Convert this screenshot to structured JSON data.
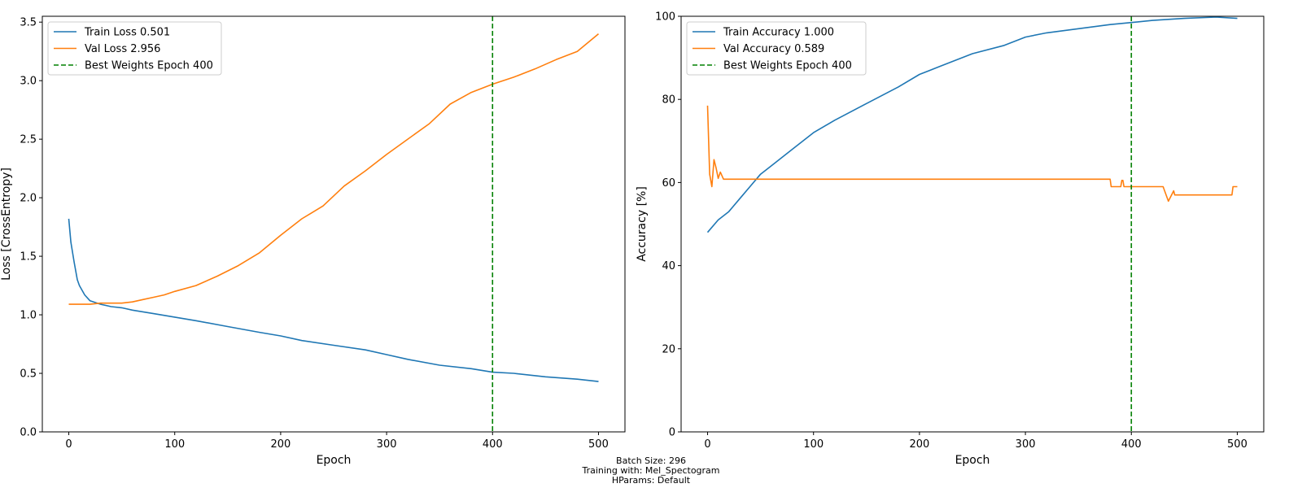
{
  "chart_data": [
    {
      "type": "line",
      "xlabel": "Epoch",
      "ylabel": "Loss [CrossEntropy]",
      "xlim": [
        -25,
        525
      ],
      "ylim": [
        0,
        3.55
      ],
      "xticks": [
        0,
        100,
        200,
        300,
        400,
        500
      ],
      "yticks": [
        0.0,
        0.5,
        1.0,
        1.5,
        2.0,
        2.5,
        3.0,
        3.5
      ],
      "ytick_labels": [
        "0.0",
        "0.5",
        "1.0",
        "1.5",
        "2.0",
        "2.5",
        "3.0",
        "3.5"
      ],
      "legend_position": "top-left",
      "series": [
        {
          "name": "Train Loss 0.501",
          "color": "#1f77b4",
          "x": [
            0,
            2,
            5,
            8,
            10,
            15,
            20,
            30,
            40,
            50,
            60,
            80,
            100,
            120,
            150,
            180,
            200,
            220,
            250,
            280,
            300,
            320,
            350,
            380,
            400,
            420,
            450,
            480,
            500
          ],
          "y": [
            1.82,
            1.62,
            1.45,
            1.3,
            1.25,
            1.17,
            1.12,
            1.09,
            1.07,
            1.06,
            1.04,
            1.01,
            0.98,
            0.95,
            0.9,
            0.85,
            0.82,
            0.78,
            0.74,
            0.7,
            0.66,
            0.62,
            0.57,
            0.54,
            0.51,
            0.5,
            0.47,
            0.45,
            0.43
          ]
        },
        {
          "name": "Val Loss 2.956",
          "color": "#ff7f0e",
          "x": [
            0,
            10,
            20,
            30,
            40,
            50,
            60,
            70,
            80,
            90,
            100,
            120,
            140,
            160,
            180,
            200,
            220,
            240,
            260,
            280,
            300,
            320,
            340,
            360,
            380,
            400,
            420,
            440,
            460,
            480,
            500
          ],
          "y": [
            1.09,
            1.09,
            1.09,
            1.1,
            1.1,
            1.1,
            1.11,
            1.13,
            1.15,
            1.17,
            1.2,
            1.25,
            1.33,
            1.42,
            1.53,
            1.68,
            1.82,
            1.93,
            2.1,
            2.23,
            2.37,
            2.5,
            2.63,
            2.8,
            2.9,
            2.97,
            3.03,
            3.1,
            3.18,
            3.25,
            3.4
          ]
        },
        {
          "name": "Best Weights Epoch 400",
          "color": "#008000",
          "dashed": true,
          "vline": 400
        }
      ]
    },
    {
      "type": "line",
      "xlabel": "Epoch",
      "ylabel": "Accuracy [%]",
      "xlim": [
        -25,
        525
      ],
      "ylim": [
        0,
        100
      ],
      "xticks": [
        0,
        100,
        200,
        300,
        400,
        500
      ],
      "yticks": [
        0,
        20,
        40,
        60,
        80,
        100
      ],
      "ytick_labels": [
        "0",
        "20",
        "40",
        "60",
        "80",
        "100"
      ],
      "legend_position": "top-left",
      "series": [
        {
          "name": "Train Accuracy 1.000",
          "color": "#1f77b4",
          "x": [
            0,
            10,
            20,
            30,
            40,
            50,
            60,
            70,
            80,
            100,
            120,
            150,
            180,
            200,
            220,
            250,
            280,
            300,
            320,
            350,
            380,
            400,
            420,
            450,
            480,
            500
          ],
          "y": [
            48,
            51,
            53,
            56,
            59,
            62,
            64,
            66,
            68,
            72,
            75,
            79,
            83,
            86,
            88,
            91,
            93,
            95,
            96,
            97,
            98,
            98.5,
            99,
            99.5,
            99.8,
            99.5
          ]
        },
        {
          "name": "Val Accuracy 0.589",
          "color": "#ff7f0e",
          "x": [
            0,
            2,
            4,
            6,
            8,
            10,
            12,
            15,
            20,
            100,
            200,
            300,
            380,
            381,
            390,
            391,
            392,
            393,
            400,
            430,
            435,
            440,
            441,
            442,
            445,
            460,
            495,
            496,
            500
          ],
          "y": [
            78.5,
            62,
            59,
            65.5,
            63.5,
            61,
            62.5,
            60.8,
            60.8,
            60.8,
            60.8,
            60.8,
            60.8,
            59,
            59,
            60.5,
            60.5,
            59,
            59,
            59,
            55.5,
            58,
            57,
            57,
            57,
            57,
            57,
            59,
            59
          ]
        },
        {
          "name": "Best Weights Epoch 400",
          "color": "#008000",
          "dashed": true,
          "vline": 400
        }
      ]
    }
  ],
  "footer": {
    "line1": "Batch Size: 296",
    "line2": "Training with: Mel_Spectogram",
    "line3": "HParams: Default"
  }
}
